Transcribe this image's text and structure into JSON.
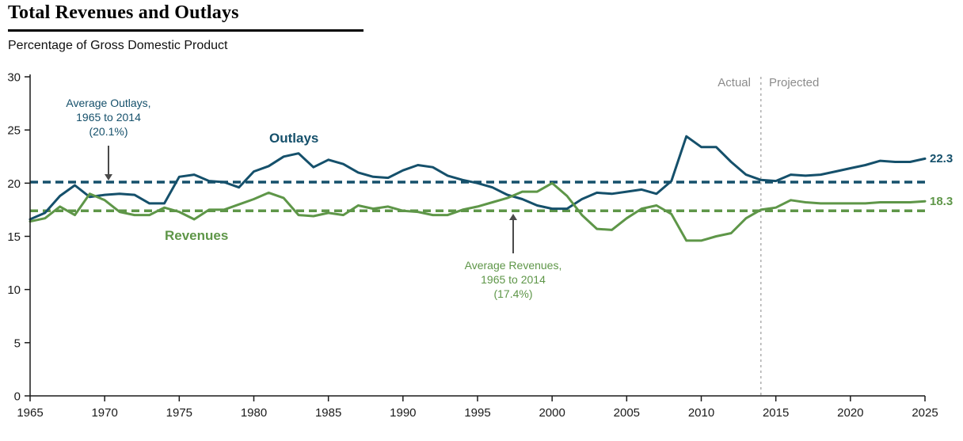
{
  "page": {
    "title": "Total Revenues and Outlays",
    "subtitle": "Percentage of Gross Domestic Product"
  },
  "labels": {
    "outlays_series": "Outlays",
    "revenues_series": "Revenues"
  },
  "annotations": {
    "avg_outlays": {
      "line1": "Average Outlays,",
      "line2": "1965 to 2014",
      "line3": "(20.1%)"
    },
    "avg_revenues": {
      "line1": "Average Revenues,",
      "line2": "1965 to 2014",
      "line3": "(17.4%)"
    }
  },
  "colors": {
    "outlays": "#15506B",
    "revenues": "#5E9648",
    "divider": "#9A9A9A",
    "axis": "#1A1A1A",
    "annotation_arrow": "#4A4A4A",
    "period_text": "#8C8C8C"
  },
  "chart_data": {
    "type": "line",
    "title": "Total Revenues and Outlays",
    "ylabel": "Percentage of Gross Domestic Product",
    "ylim": [
      0,
      30
    ],
    "yticks": [
      0,
      5,
      10,
      15,
      20,
      25,
      30
    ],
    "xticks": [
      1965,
      1970,
      1975,
      1980,
      1985,
      1990,
      1995,
      2000,
      2005,
      2010,
      2015,
      2020,
      2025
    ],
    "divider_x": 2014,
    "divider_labels": {
      "left": "Actual",
      "right": "Projected"
    },
    "x": [
      1965,
      1966,
      1967,
      1968,
      1969,
      1970,
      1971,
      1972,
      1973,
      1974,
      1975,
      1976,
      1977,
      1978,
      1979,
      1980,
      1981,
      1982,
      1983,
      1984,
      1985,
      1986,
      1987,
      1988,
      1989,
      1990,
      1991,
      1992,
      1993,
      1994,
      1995,
      1996,
      1997,
      1998,
      1999,
      2000,
      2001,
      2002,
      2003,
      2004,
      2005,
      2006,
      2007,
      2008,
      2009,
      2010,
      2011,
      2012,
      2013,
      2014,
      2015,
      2016,
      2017,
      2018,
      2019,
      2020,
      2021,
      2022,
      2023,
      2024,
      2025
    ],
    "series": [
      {
        "name": "Outlays",
        "color": "outlays",
        "values": [
          16.6,
          17.2,
          18.8,
          19.8,
          18.7,
          18.9,
          19.0,
          18.9,
          18.1,
          18.1,
          20.6,
          20.8,
          20.2,
          20.1,
          19.6,
          21.1,
          21.6,
          22.5,
          22.8,
          21.5,
          22.2,
          21.8,
          21.0,
          20.6,
          20.5,
          21.2,
          21.7,
          21.5,
          20.7,
          20.3,
          20.0,
          19.6,
          18.9,
          18.5,
          17.9,
          17.6,
          17.6,
          18.5,
          19.1,
          19.0,
          19.2,
          19.4,
          19.0,
          20.2,
          24.4,
          23.4,
          23.4,
          22.0,
          20.8,
          20.3,
          20.2,
          20.8,
          20.7,
          20.8,
          21.1,
          21.4,
          21.7,
          22.1,
          22.0,
          22.0,
          22.3
        ]
      },
      {
        "name": "Revenues",
        "color": "revenues",
        "values": [
          16.4,
          16.7,
          17.8,
          17.0,
          19.0,
          18.4,
          17.3,
          17.0,
          17.0,
          17.7,
          17.3,
          16.6,
          17.5,
          17.5,
          18.0,
          18.5,
          19.1,
          18.6,
          17.0,
          16.9,
          17.2,
          17.0,
          17.9,
          17.6,
          17.8,
          17.4,
          17.3,
          17.0,
          17.0,
          17.5,
          17.8,
          18.2,
          18.6,
          19.2,
          19.2,
          20.0,
          18.8,
          17.0,
          15.7,
          15.6,
          16.7,
          17.6,
          17.9,
          17.1,
          14.6,
          14.6,
          15.0,
          15.3,
          16.7,
          17.5,
          17.7,
          18.4,
          18.2,
          18.1,
          18.1,
          18.1,
          18.1,
          18.2,
          18.2,
          18.2,
          18.3
        ]
      }
    ],
    "avg_lines": [
      {
        "label": "Average Outlays, 1965 to 2014 (20.1%)",
        "value": 20.1,
        "color": "outlays"
      },
      {
        "label": "Average Revenues, 1965 to 2014 (17.4%)",
        "value": 17.4,
        "color": "revenues"
      }
    ],
    "end_labels": [
      {
        "series": "Outlays",
        "value": "22.3"
      },
      {
        "series": "Revenues",
        "value": "18.3"
      }
    ]
  }
}
